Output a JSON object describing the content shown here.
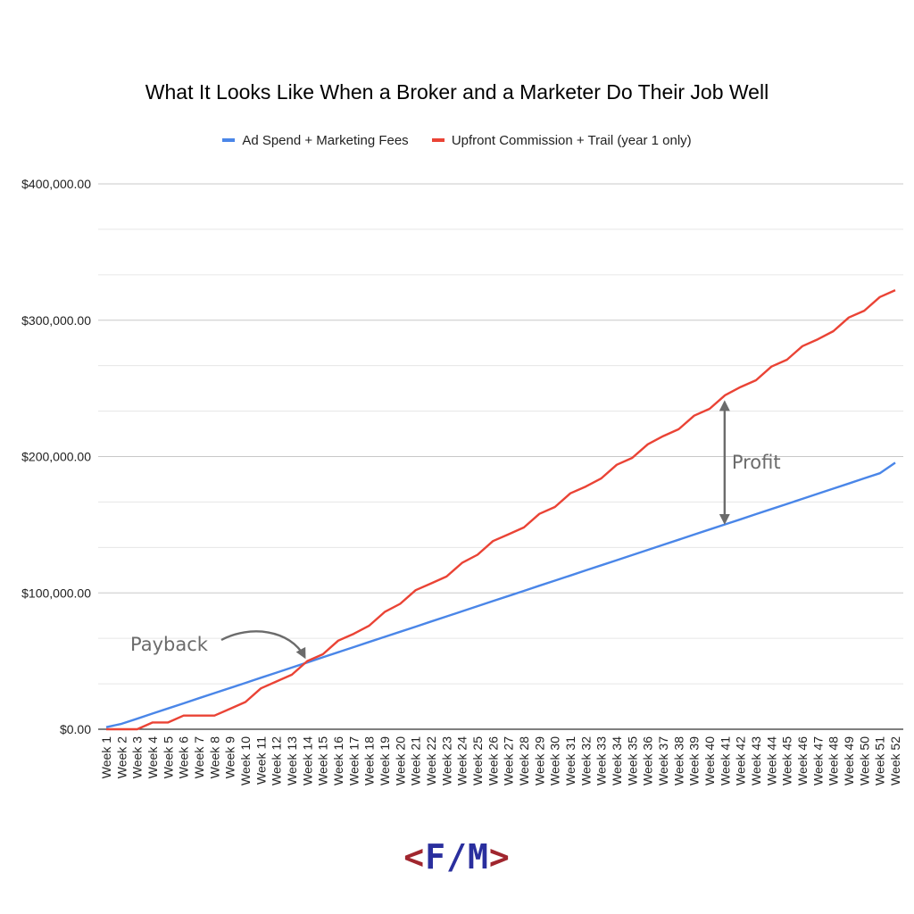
{
  "colors": {
    "ad_spend": "#4a86e8",
    "commission": "#ea4335",
    "grid": "#cccccc",
    "annotation": "#6b6b6b",
    "logo_bracket": "#a0262e",
    "logo_letters": "#2a2f9e"
  },
  "logo": {
    "open": "<",
    "left": "F",
    "slash": "/",
    "right": "M",
    "close": ">"
  },
  "chart_data": {
    "type": "line",
    "title": "What It Looks Like When a Broker and a Marketer Do Their Job Well",
    "xlabel": "",
    "ylabel": "",
    "ylim": [
      0,
      400000
    ],
    "yticks": [
      0,
      100000,
      200000,
      300000,
      400000
    ],
    "ytick_labels": [
      "$0.00",
      "$100,000.00",
      "$200,000.00",
      "$300,000.00",
      "$400,000.00"
    ],
    "grid": true,
    "legend_position": "top",
    "categories": [
      "Week 1",
      "Week 2",
      "Week 3",
      "Week 4",
      "Week 5",
      "Week 6",
      "Week 7",
      "Week 8",
      "Week 9",
      "Week 10",
      "Week 11",
      "Week 12",
      "Week 13",
      "Week 14",
      "Week 15",
      "Week 16",
      "Week 17",
      "Week 18",
      "Week 19",
      "Week 20",
      "Week 21",
      "Week 22",
      "Week 23",
      "Week 24",
      "Week 25",
      "Week 26",
      "Week 27",
      "Week 28",
      "Week 29",
      "Week 30",
      "Week 31",
      "Week 32",
      "Week 33",
      "Week 34",
      "Week 35",
      "Week 36",
      "Week 37",
      "Week 38",
      "Week 39",
      "Week 40",
      "Week 41",
      "Week 42",
      "Week 43",
      "Week 44",
      "Week 45",
      "Week 46",
      "Week 47",
      "Week 48",
      "Week 49",
      "Week 50",
      "Week 51",
      "Week 52"
    ],
    "series": [
      {
        "name": "Ad Spend + Marketing Fees",
        "color": "#4a86e8",
        "values": [
          1500,
          4000,
          7750,
          11500,
          15250,
          19000,
          22750,
          26500,
          30250,
          34000,
          37750,
          41500,
          45250,
          49000,
          52750,
          56500,
          60250,
          64000,
          67750,
          71500,
          75250,
          79000,
          82750,
          86500,
          90250,
          94000,
          97750,
          101500,
          105250,
          109000,
          112750,
          116500,
          120250,
          124000,
          127750,
          131500,
          135250,
          139000,
          142750,
          146500,
          150250,
          154000,
          157750,
          161500,
          165250,
          169000,
          172750,
          176500,
          180250,
          184000,
          187750,
          195500
        ]
      },
      {
        "name": "Upfront Commission + Trail (year 1 only)",
        "color": "#ea4335",
        "values": [
          0,
          0,
          0,
          5000,
          5000,
          10000,
          10000,
          10000,
          15000,
          20000,
          30000,
          35000,
          40000,
          50000,
          55000,
          65000,
          70000,
          76000,
          86000,
          92000,
          102000,
          107000,
          112000,
          122000,
          128000,
          138000,
          143000,
          148000,
          158000,
          163000,
          173000,
          178000,
          184000,
          194000,
          199000,
          209000,
          215000,
          220000,
          230000,
          235000,
          245000,
          251000,
          256000,
          266000,
          271000,
          281000,
          286000,
          292000,
          302000,
          307000,
          317000,
          322000
        ]
      }
    ],
    "annotations": [
      {
        "label": "Payback",
        "at_week": 14
      },
      {
        "label": "Profit",
        "at_week": 41
      }
    ]
  }
}
